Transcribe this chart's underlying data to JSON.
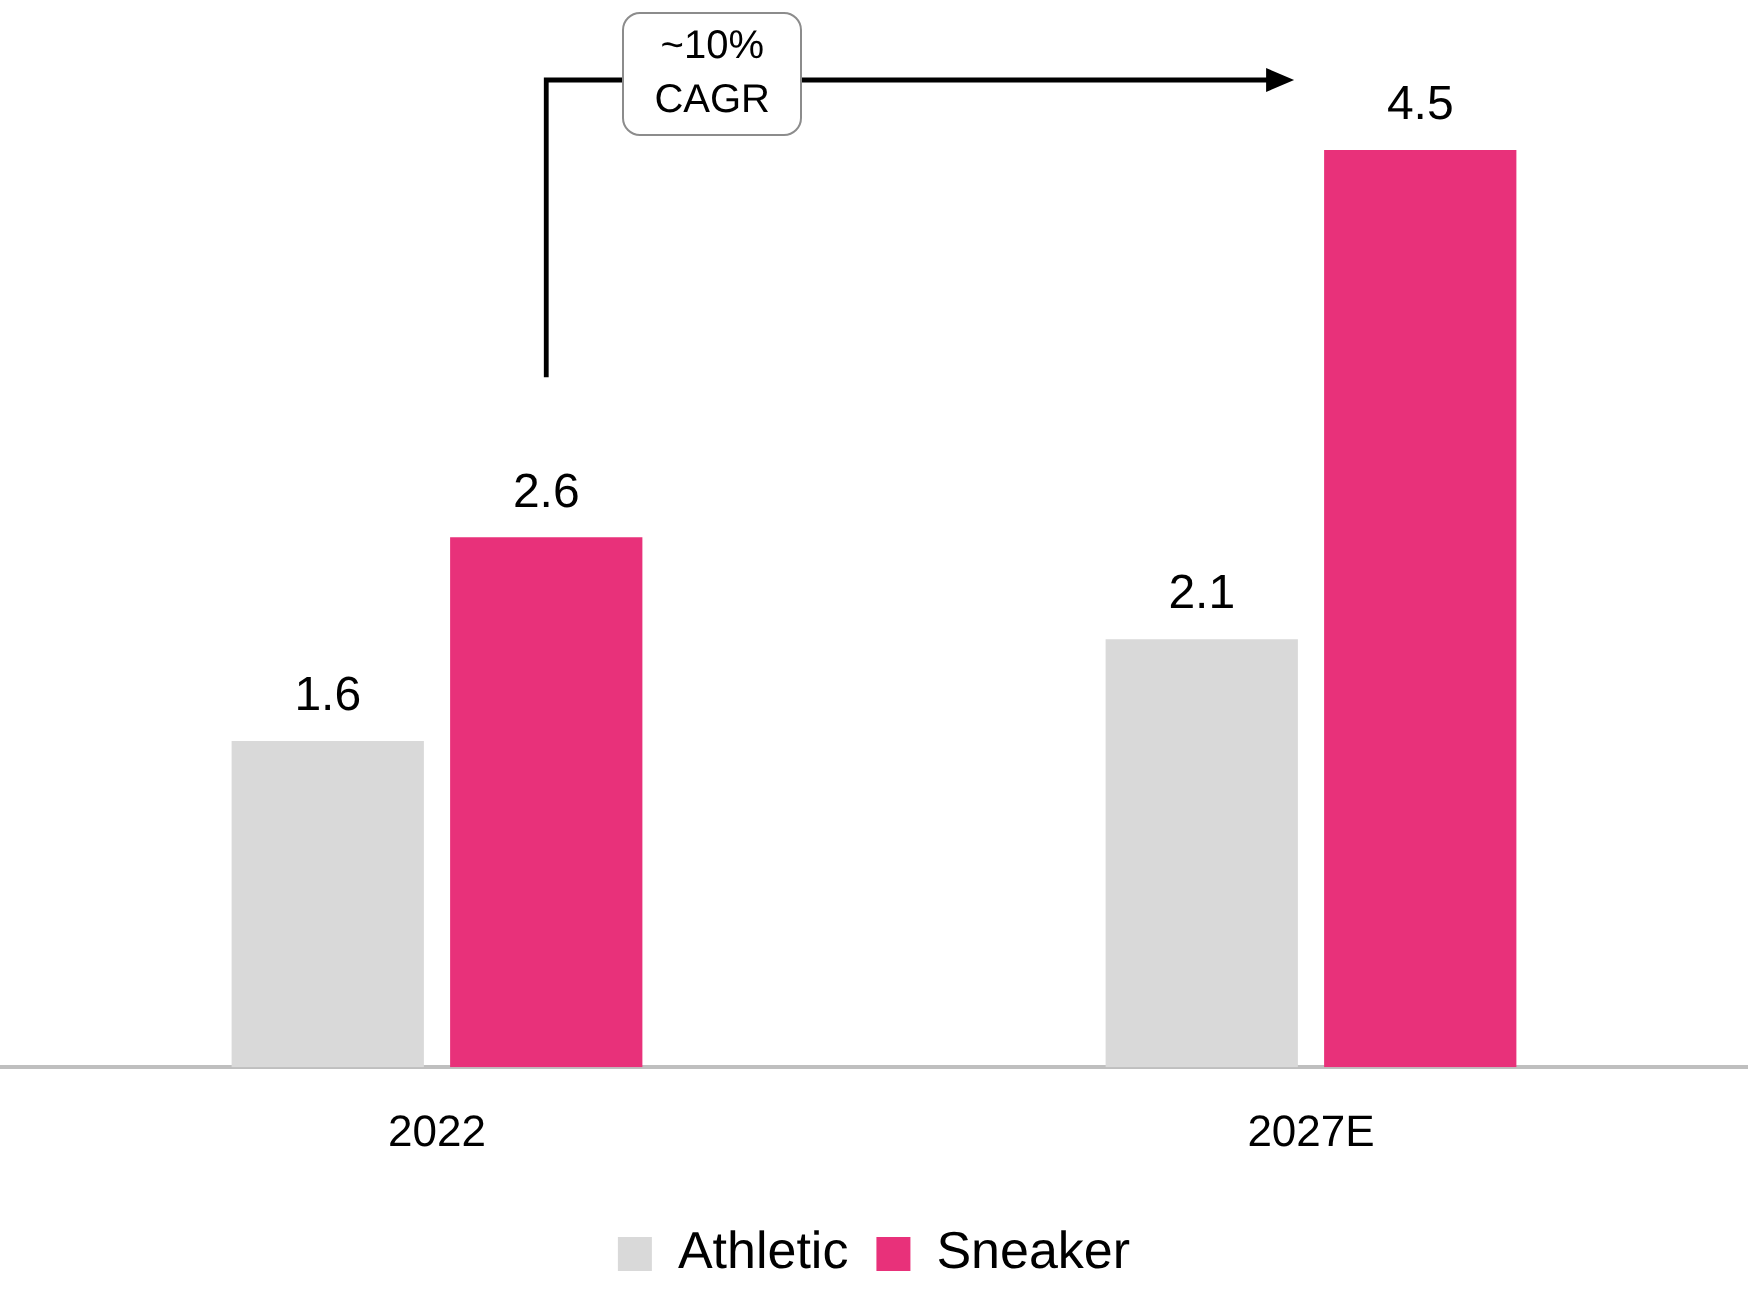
{
  "chart_data": {
    "type": "bar",
    "categories": [
      "2022",
      "2027E"
    ],
    "series": [
      {
        "name": "Athletic",
        "color": "#d9d9d9",
        "values": [
          1.6,
          2.1
        ]
      },
      {
        "name": "Sneaker",
        "color": "#e8317a",
        "values": [
          2.6,
          4.5
        ]
      }
    ],
    "data_labels": true,
    "grid": false,
    "legend": "bottom",
    "tick_labels": "x",
    "annotations": [
      "~10% CAGR"
    ]
  }
}
